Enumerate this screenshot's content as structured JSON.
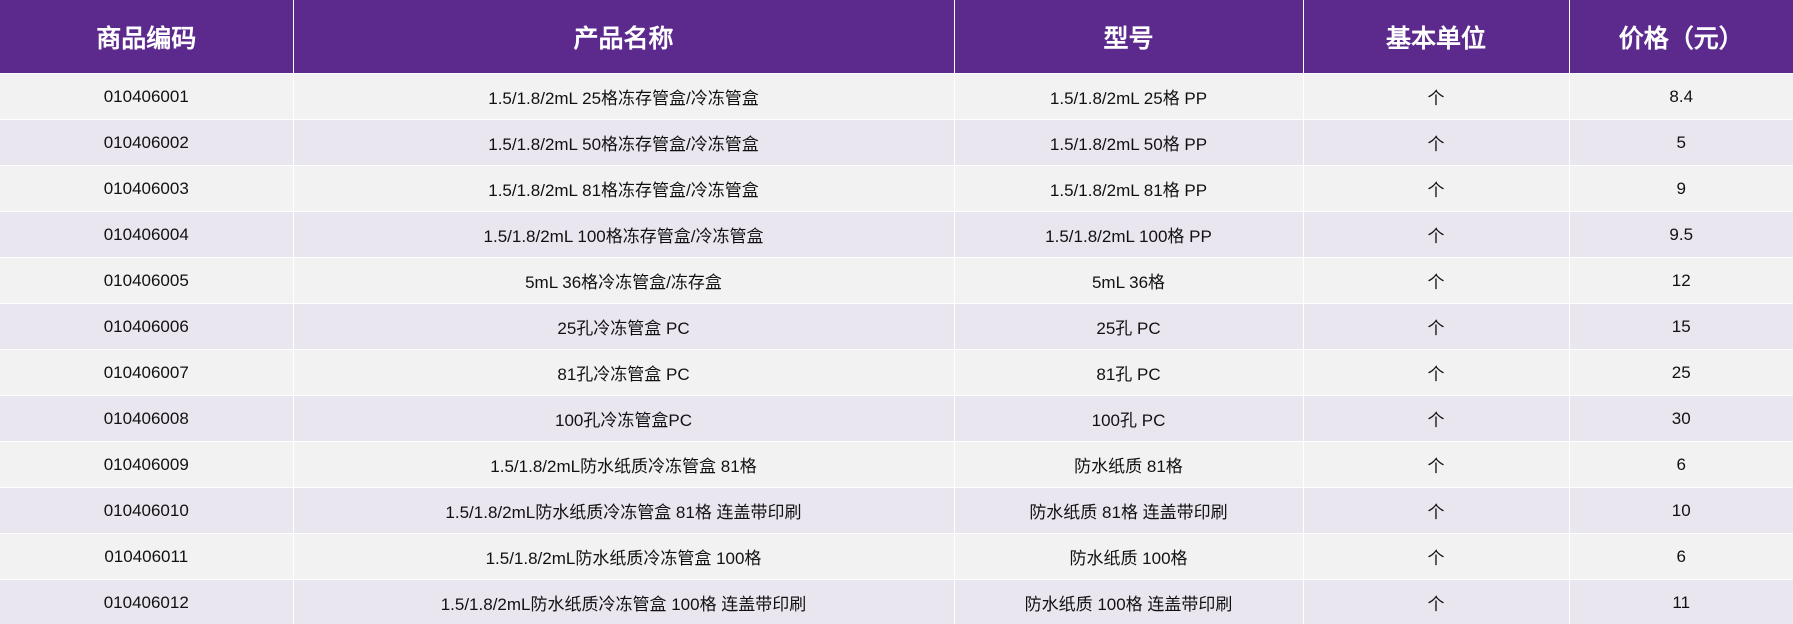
{
  "colors": {
    "header_bg": "#5c2a8c",
    "header_text": "#ffffff",
    "row_odd_bg": "#f2f2f2",
    "row_even_bg": "#e9e6f0"
  },
  "table": {
    "headers": [
      "商品编码",
      "产品名称",
      "型号",
      "基本单位",
      "价格（元）"
    ],
    "rows": [
      [
        "010406001",
        "1.5/1.8/2mL 25格冻存管盒/冷冻管盒",
        "1.5/1.8/2mL 25格 PP",
        "个",
        "8.4"
      ],
      [
        "010406002",
        "1.5/1.8/2mL 50格冻存管盒/冷冻管盒",
        "1.5/1.8/2mL 50格 PP",
        "个",
        "5"
      ],
      [
        "010406003",
        "1.5/1.8/2mL 81格冻存管盒/冷冻管盒",
        "1.5/1.8/2mL 81格 PP",
        "个",
        "9"
      ],
      [
        "010406004",
        "1.5/1.8/2mL 100格冻存管盒/冷冻管盒",
        "1.5/1.8/2mL 100格 PP",
        "个",
        "9.5"
      ],
      [
        "010406005",
        "5mL 36格冷冻管盒/冻存盒",
        "5mL 36格",
        "个",
        "12"
      ],
      [
        "010406006",
        "25孔冷冻管盒 PC",
        "25孔 PC",
        "个",
        "15"
      ],
      [
        "010406007",
        "81孔冷冻管盒 PC",
        "81孔 PC",
        "个",
        "25"
      ],
      [
        "010406008",
        "100孔冷冻管盒PC",
        "100孔 PC",
        "个",
        "30"
      ],
      [
        "010406009",
        "1.5/1.8/2mL防水纸质冷冻管盒 81格",
        "防水纸质 81格",
        "个",
        "6"
      ],
      [
        "010406010",
        "1.5/1.8/2mL防水纸质冷冻管盒 81格 连盖带印刷",
        "防水纸质 81格 连盖带印刷",
        "个",
        "10"
      ],
      [
        "010406011",
        "1.5/1.8/2mL防水纸质冷冻管盒 100格",
        "防水纸质 100格",
        "个",
        "6"
      ],
      [
        "010406012",
        "1.5/1.8/2mL防水纸质冷冻管盒 100格 连盖带印刷",
        "防水纸质 100格 连盖带印刷",
        "个",
        "11"
      ]
    ]
  }
}
